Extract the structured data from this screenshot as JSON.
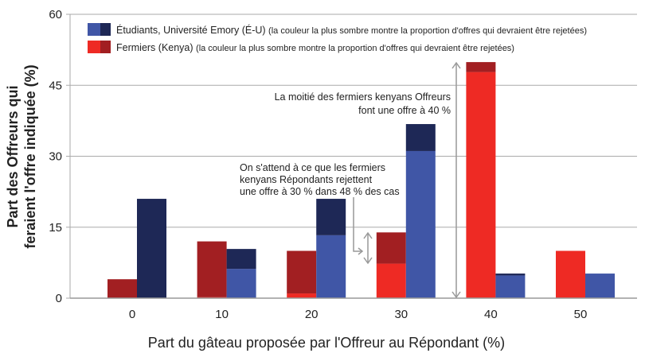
{
  "chart_data": {
    "type": "bar",
    "stacked": true,
    "categories": [
      "0",
      "10",
      "20",
      "30",
      "40",
      "50"
    ],
    "xlabel": "Part du gâteau proposée par l'Offreur au Répondant (%)",
    "ylabel": [
      "Part des Offreurs qui",
      "feraient l'offre indiquée  (%)"
    ],
    "ylim": [
      0,
      60
    ],
    "yticks": [
      "0",
      "15",
      "30",
      "45",
      "60"
    ],
    "grid": true,
    "legend_position": "top-left",
    "series": [
      {
        "name": "Fermiers (Kenya)",
        "note": "(la couleur la plus sombre montre la proportion d'offres qui devraient être rejetées)",
        "accepted": [
          0,
          0.2,
          1,
          7.3,
          47.8,
          10
        ],
        "rejected": [
          4,
          11.8,
          9,
          6.6,
          2.1,
          0
        ],
        "color_light": "#ee2a24",
        "color_dark": "#a21f22"
      },
      {
        "name": "Étudiants, Université Emory (É-U)",
        "note": "(la couleur la plus sombre montre la proportion d'offres qui devraient être rejetées)",
        "accepted": [
          0,
          6.2,
          13.3,
          31.1,
          4.8,
          5.2
        ],
        "rejected": [
          21,
          4.2,
          7.7,
          5.7,
          0.4,
          0
        ],
        "color_light": "#4056a6",
        "color_dark": "#1e2856"
      }
    ],
    "annotations": [
      {
        "lines": [
          "La moitié des fermiers kenyans Offreurs",
          "font une offre à 40 %"
        ]
      },
      {
        "lines": [
          "On s'attend à ce que les fermiers",
          "kenyans Répondants rejettent",
          "une offre à 30 % dans 48 % des cas"
        ]
      }
    ]
  }
}
